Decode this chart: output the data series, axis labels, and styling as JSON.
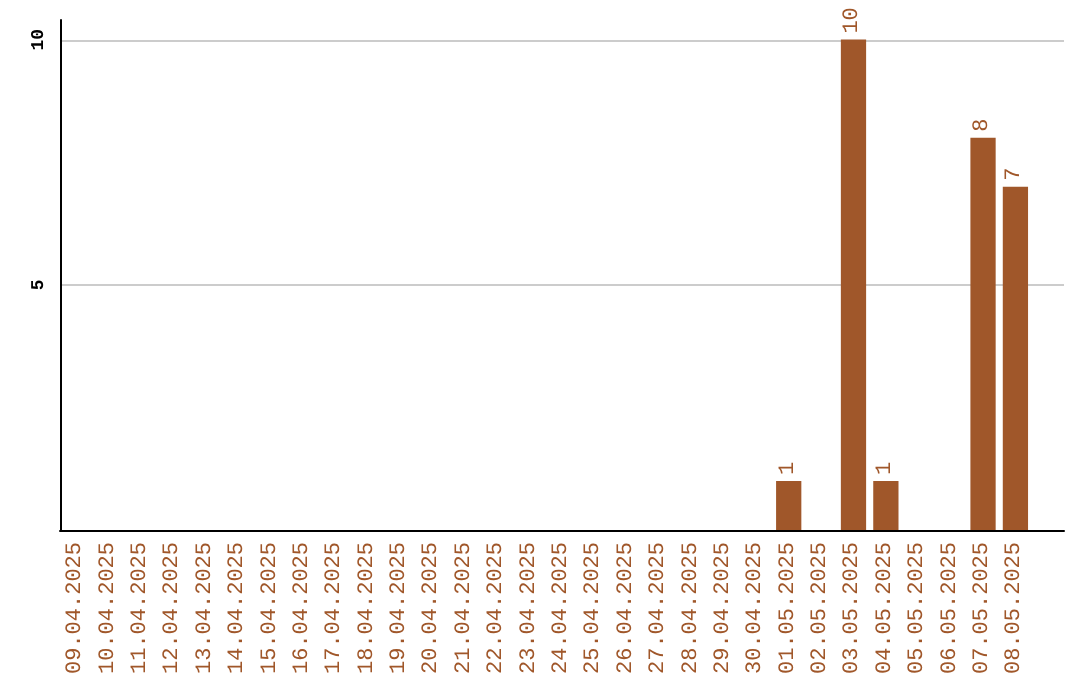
{
  "chart_data": {
    "type": "bar",
    "categories": [
      "09.04.2025",
      "10.04.2025",
      "11.04.2025",
      "12.04.2025",
      "13.04.2025",
      "14.04.2025",
      "15.04.2025",
      "16.04.2025",
      "17.04.2025",
      "18.04.2025",
      "19.04.2025",
      "20.04.2025",
      "21.04.2025",
      "22.04.2025",
      "23.04.2025",
      "24.04.2025",
      "25.04.2025",
      "26.04.2025",
      "27.04.2025",
      "28.04.2025",
      "29.04.2025",
      "30.04.2025",
      "01.05.2025",
      "02.05.2025",
      "03.05.2025",
      "04.05.2025",
      "05.05.2025",
      "06.05.2025",
      "07.05.2025",
      "08.05.2025"
    ],
    "values": [
      0,
      0,
      0,
      0,
      0,
      0,
      0,
      0,
      0,
      0,
      0,
      0,
      0,
      0,
      0,
      0,
      0,
      0,
      0,
      0,
      0,
      0,
      1,
      0,
      10,
      1,
      0,
      0,
      8,
      7
    ],
    "value_labels": [
      null,
      null,
      null,
      null,
      null,
      null,
      null,
      null,
      null,
      null,
      null,
      null,
      null,
      null,
      null,
      null,
      null,
      null,
      null,
      null,
      null,
      null,
      "1",
      null,
      "10",
      "1",
      null,
      null,
      "8",
      "7"
    ],
    "color": "#a0572a",
    "ylim": [
      0,
      10.4
    ],
    "yticks": [
      5,
      10
    ],
    "grid": "y"
  }
}
